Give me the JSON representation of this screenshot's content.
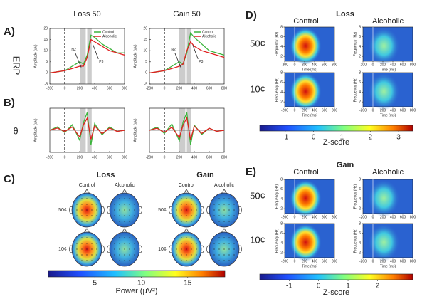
{
  "panel_a": {
    "label": "A)",
    "row_label": "ERP",
    "y_label": "Amplitude (uV)",
    "annotations": [
      "N2",
      "P3"
    ],
    "x": [
      -200,
      -100,
      0,
      100,
      200,
      250,
      300,
      350,
      400,
      500,
      600,
      700,
      800
    ],
    "xticks": [
      -200,
      0,
      200,
      400,
      600,
      800
    ],
    "yticks": [
      20,
      15,
      10,
      5,
      0,
      -5
    ],
    "plots": [
      {
        "title": "Loss 50",
        "series": [
          {
            "name": "Control",
            "color": "#3cb43c",
            "values": [
              0,
              0.5,
              1,
              3,
              5,
              4,
              8,
              17,
              16,
              13,
              11,
              9,
              9
            ]
          },
          {
            "name": "Alcoholic",
            "color": "#e02020",
            "values": [
              0,
              0.5,
              1,
              2,
              3,
              3,
              7,
              15,
              14,
              12,
              10,
              9,
              8
            ]
          }
        ]
      },
      {
        "title": "Gain 50",
        "series": [
          {
            "name": "Control",
            "color": "#3cb43c",
            "values": [
              0,
              0.5,
              1,
              3,
              5,
              4,
              9,
              18,
              16,
              13,
              10,
              9,
              8
            ]
          },
          {
            "name": "Alcoholic",
            "color": "#e02020",
            "values": [
              0,
              0.5,
              1,
              2,
              3,
              4,
              10,
              14,
              12,
              10,
              9,
              8,
              7
            ]
          }
        ]
      }
    ]
  },
  "panel_b": {
    "label": "B)",
    "row_label": "θ",
    "y_label": "Amplitude (uV)",
    "x": [
      -200,
      -100,
      0,
      100,
      200,
      250,
      300,
      350,
      400,
      500,
      600,
      700,
      800
    ],
    "xticks": [
      -200,
      0,
      200,
      400,
      600,
      800
    ],
    "plots": [
      {
        "series": [
          {
            "name": "Control",
            "color": "#3cb43c",
            "values": [
              0,
              0.3,
              -0.2,
              0.5,
              -0.9,
              0.7,
              1.6,
              -1.3,
              0.6,
              -0.4,
              0.3,
              -0.1,
              0
            ]
          },
          {
            "name": "Alcoholic",
            "color": "#e02020",
            "values": [
              0,
              0.2,
              -0.1,
              0.3,
              -0.6,
              0.5,
              1.1,
              -0.8,
              0.4,
              -0.3,
              0.2,
              -0.1,
              0
            ]
          }
        ]
      },
      {
        "series": [
          {
            "name": "Control",
            "color": "#3cb43c",
            "values": [
              0,
              0.3,
              -0.3,
              0.6,
              -1,
              0.8,
              1.7,
              -1.4,
              0.5,
              -0.4,
              0.2,
              -0.1,
              0
            ]
          },
          {
            "name": "Alcoholic",
            "color": "#e02020",
            "values": [
              0,
              0.2,
              -0.2,
              0.3,
              -0.7,
              0.5,
              1.2,
              -0.9,
              0.4,
              -0.3,
              0.2,
              -0.1,
              0
            ]
          }
        ]
      }
    ]
  },
  "panel_c": {
    "label": "C)",
    "groups": [
      "Loss",
      "Gain"
    ],
    "columns": [
      "Control",
      "Alcoholic"
    ],
    "rows": [
      "50¢",
      "10¢"
    ],
    "colorbar_lim": [
      0,
      19
    ],
    "colorbar_ticks": [
      5,
      10,
      15
    ],
    "colorbar_label": "Power (μV²)"
  },
  "panel_d": {
    "label": "D)",
    "title": "Loss",
    "columns": [
      "Control",
      "Alcoholic"
    ],
    "rows": [
      "50¢",
      "10¢"
    ],
    "y_label": "Frequency (Hz)",
    "x_label": "Time (ms)",
    "ylim": [
      1,
      8
    ],
    "yticks": [
      2,
      4,
      6,
      8
    ],
    "xticks": [
      -200,
      0,
      200,
      400,
      600,
      800
    ],
    "colorbar_lim": [
      -1.9,
      3.5
    ],
    "colorbar_ticks": [
      -1,
      0,
      1,
      2,
      3
    ],
    "colorbar_label": "Z-score"
  },
  "panel_e": {
    "label": "E)",
    "title": "Gain",
    "columns": [
      "Control",
      "Alcoholic"
    ],
    "rows": [
      "50¢",
      "10¢"
    ],
    "y_label": "Frequency (Hz)",
    "x_label": "Time (ms)",
    "ylim": [
      1,
      8
    ],
    "yticks": [
      2,
      4,
      6,
      8
    ],
    "xticks": [
      -200,
      0,
      200,
      400,
      600,
      800
    ],
    "colorbar_lim": [
      -2,
      3.2
    ],
    "colorbar_ticks": [
      -1,
      0,
      1,
      2
    ],
    "colorbar_label": "Z-score"
  }
}
